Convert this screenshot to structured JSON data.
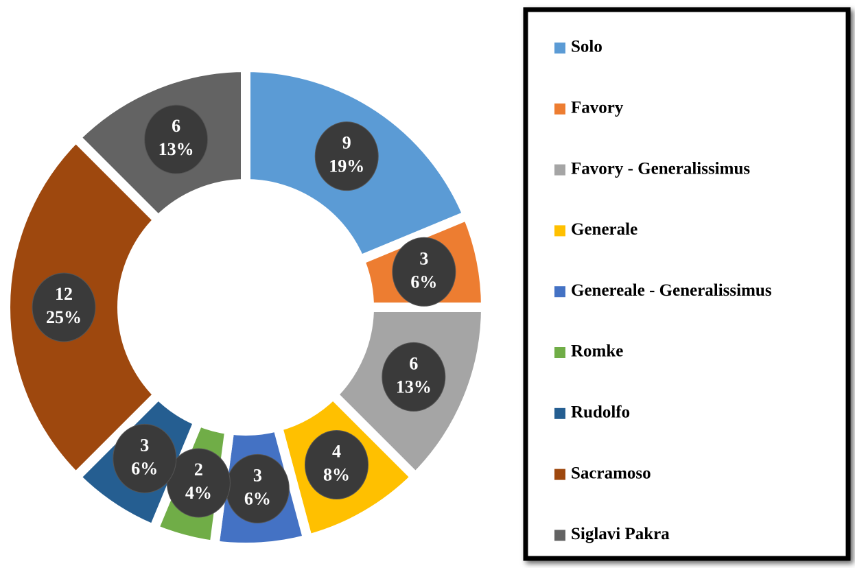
{
  "chart_data": {
    "type": "donut",
    "categories": [
      "Solo",
      "Favory",
      "Favory - Generalissimus",
      "Generale",
      "Genereale - Generalissimus",
      "Romke",
      "Rudolfo",
      "Sacramoso",
      "Siglavi Pakra"
    ],
    "values": [
      9,
      3,
      6,
      4,
      3,
      2,
      3,
      12,
      6
    ],
    "percent_labels": [
      "19%",
      "6%",
      "13%",
      "8%",
      "6%",
      "4%",
      "6%",
      "25%",
      "13%"
    ],
    "colors": [
      "#5b9bd5",
      "#ed7d31",
      "#a5a5a5",
      "#ffc000",
      "#4472c4",
      "#70ad47",
      "#255e91",
      "#9e480e",
      "#636363"
    ],
    "legend": "right"
  }
}
